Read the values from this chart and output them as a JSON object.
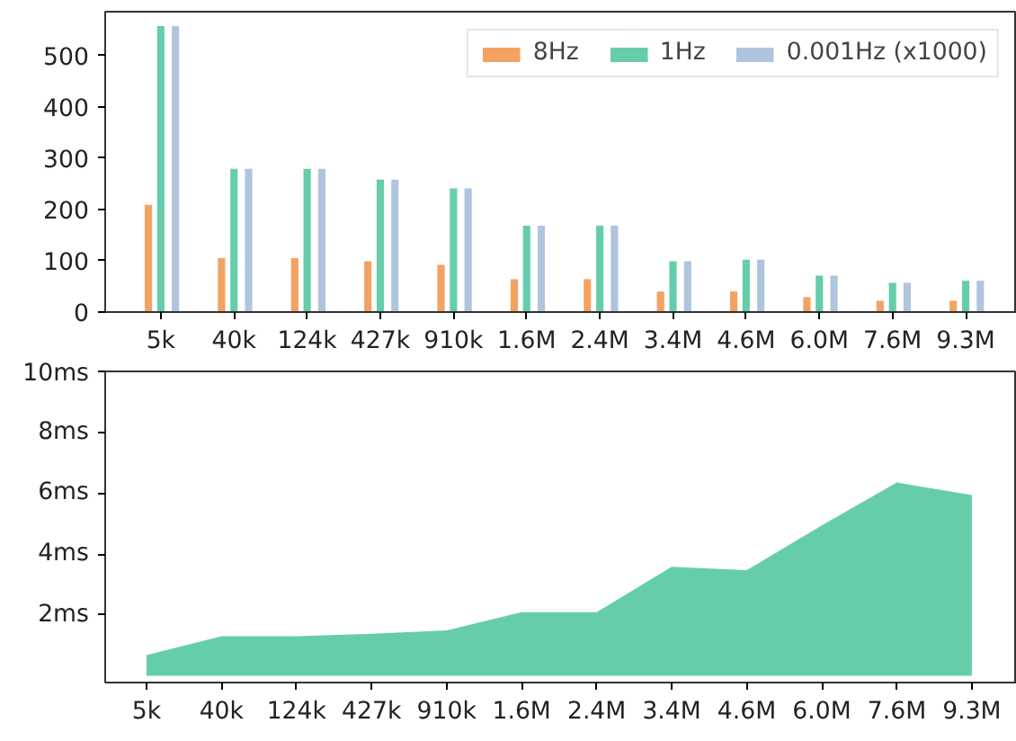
{
  "chart_data": [
    {
      "type": "bar",
      "categories": [
        "5k",
        "40k",
        "124k",
        "427k",
        "910k",
        "1.6M",
        "2.4M",
        "3.4M",
        "4.6M",
        "6.0M",
        "7.6M",
        "9.3M"
      ],
      "series": [
        {
          "name": "8Hz",
          "color": "#f4a261",
          "values": [
            209,
            105,
            105,
            99,
            92,
            64,
            64,
            40,
            40,
            29,
            22,
            22
          ]
        },
        {
          "name": "1Hz",
          "color": "#66cdaa",
          "values": [
            557,
            279,
            279,
            258,
            241,
            168,
            168,
            99,
            102,
            71,
            57,
            61
          ]
        },
        {
          "name": "0.001Hz (x1000)",
          "color": "#b0c4de",
          "values": [
            557,
            279,
            279,
            258,
            241,
            168,
            168,
            99,
            102,
            71,
            57,
            61
          ]
        }
      ],
      "ylim": [
        0,
        585
      ],
      "yticks": [
        0,
        100,
        200,
        300,
        400,
        500
      ],
      "grid": false,
      "legend": "top right"
    },
    {
      "type": "area",
      "categories": [
        "5k",
        "40k",
        "124k",
        "427k",
        "910k",
        "1.6M",
        "2.4M",
        "3.4M",
        "4.6M",
        "6.0M",
        "7.6M",
        "9.3M"
      ],
      "series": [
        {
          "color": "#66cdaa",
          "values": [
            0.68,
            1.3,
            1.3,
            1.38,
            1.49,
            2.09,
            2.09,
            3.58,
            3.47,
            4.94,
            6.35,
            5.94
          ]
        }
      ],
      "ylim": [
        -0.22,
        10
      ],
      "yticks": [
        {
          "value": 2,
          "label": "2ms"
        },
        {
          "value": 4,
          "label": "4ms"
        },
        {
          "value": 6,
          "label": "6ms"
        },
        {
          "value": 8,
          "label": "8ms"
        },
        {
          "value": 10,
          "label": "10ms"
        }
      ],
      "grid": false
    }
  ]
}
